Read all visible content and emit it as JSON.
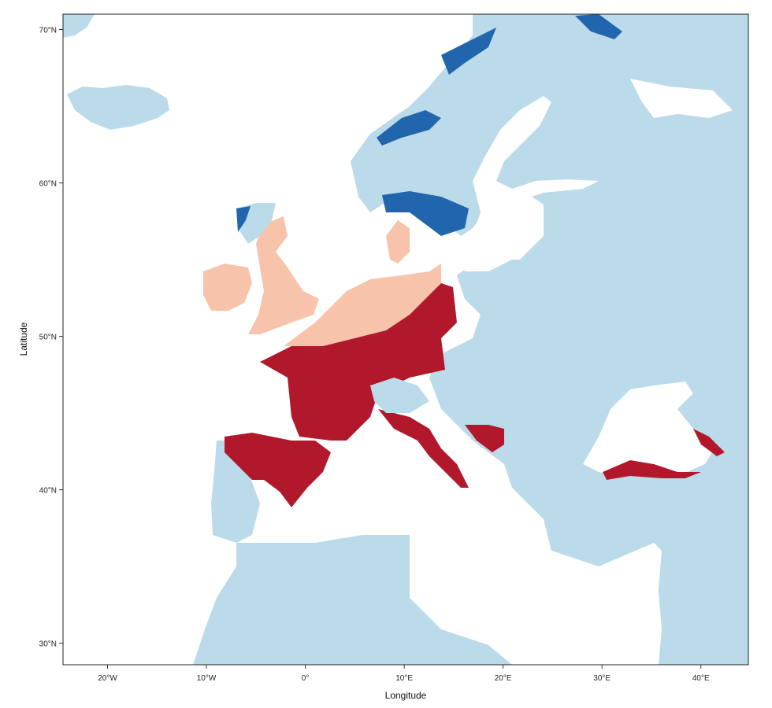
{
  "map": {
    "x_axis": {
      "title": "Longitude",
      "ticks": [
        {
          "value": -20,
          "label": "20°W"
        },
        {
          "value": -10,
          "label": "10°W"
        },
        {
          "value": 0,
          "label": "0°"
        },
        {
          "value": 10,
          "label": "10°E"
        },
        {
          "value": 20,
          "label": "20°E"
        },
        {
          "value": 30,
          "label": "30°E"
        },
        {
          "value": 40,
          "label": "40°E"
        }
      ]
    },
    "y_axis": {
      "title": "Latitude",
      "ticks": [
        {
          "value": 30,
          "label": "30°N"
        },
        {
          "value": 40,
          "label": "40°N"
        },
        {
          "value": 50,
          "label": "50°N"
        },
        {
          "value": 60,
          "label": "60°N"
        },
        {
          "value": 70,
          "label": "70°N"
        }
      ]
    },
    "extent": {
      "lon": [
        -24.5,
        44.8
      ],
      "lat": [
        28.6,
        71.0
      ]
    },
    "colors": {
      "sea": "#ffffff",
      "land_background": "#bbdaea",
      "dark_red": "#b2182b",
      "light_salmon": "#f7c4ab",
      "dark_blue": "#2166ac"
    }
  }
}
